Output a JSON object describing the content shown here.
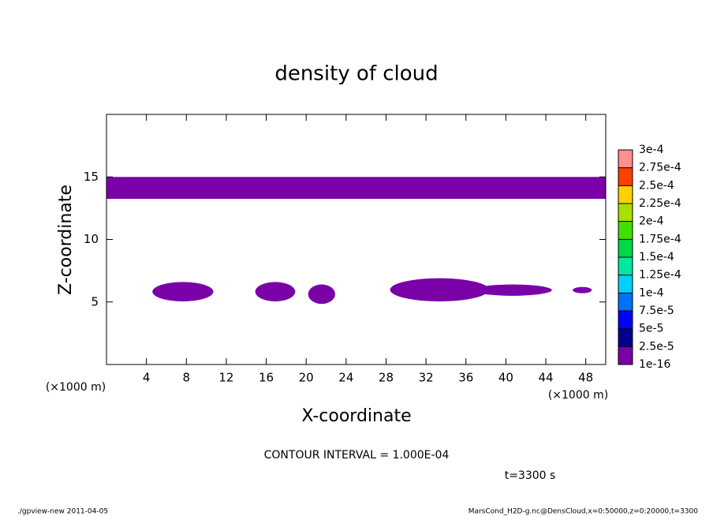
{
  "chart_data": {
    "type": "contour",
    "title": "density of cloud",
    "x_label": "X-coordinate",
    "y_label": "Z-coordinate",
    "x_unit_left": "(×1000 m)",
    "x_unit_right": "(×1000 m)",
    "contour_interval": "CONTOUR INTERVAL = 1.000E-04",
    "time_label": "t=3300 s",
    "footer_left": "./gpview-new  2011-04-05",
    "footer_right": "MarsCond_H2D-g.nc@DensCloud,x=0:50000,z=0:20000,t=3300",
    "xlim": [
      0,
      50
    ],
    "ylim": [
      0,
      20
    ],
    "xticks": [
      4,
      8,
      12,
      16,
      20,
      24,
      28,
      32,
      36,
      40,
      44,
      48
    ],
    "yticks": [
      5,
      10,
      15
    ],
    "regions": [
      {
        "shape": "rect",
        "x": [
          0,
          50
        ],
        "y": [
          13.25,
          15.0
        ],
        "color": "#7a00a8"
      },
      {
        "shape": "ellipse",
        "x": [
          4.6,
          10.7
        ],
        "y": [
          5.05,
          6.6
        ],
        "color": "#7a00a8"
      },
      {
        "shape": "ellipse",
        "x": [
          14.9,
          18.9
        ],
        "y": [
          5.05,
          6.6
        ],
        "color": "#7a00a8"
      },
      {
        "shape": "ellipse",
        "x": [
          20.2,
          22.9
        ],
        "y": [
          4.85,
          6.4
        ],
        "color": "#7a00a8"
      },
      {
        "shape": "ellipse",
        "x": [
          28.4,
          38.3
        ],
        "y": [
          5.05,
          6.9
        ],
        "color": "#7a00a8"
      },
      {
        "shape": "ellipse",
        "x": [
          36.7,
          44.6
        ],
        "y": [
          5.5,
          6.4
        ],
        "color": "#7a00a8"
      },
      {
        "shape": "ellipse",
        "x": [
          46.7,
          48.6
        ],
        "y": [
          5.7,
          6.2
        ],
        "color": "#7a00a8"
      }
    ],
    "colorbar": {
      "lim": [
        0,
        0.0003
      ],
      "levels": [
        {
          "value": 1e-16,
          "label": "1e-16"
        },
        {
          "value": 2.5e-05,
          "label": "2.5e-5"
        },
        {
          "value": 5e-05,
          "label": "5e-5"
        },
        {
          "value": 7.5e-05,
          "label": "7.5e-5"
        },
        {
          "value": 0.0001,
          "label": "1e-4"
        },
        {
          "value": 0.000125,
          "label": "1.25e-4"
        },
        {
          "value": 0.00015,
          "label": "1.5e-4"
        },
        {
          "value": 0.000175,
          "label": "1.75e-4"
        },
        {
          "value": 0.0002,
          "label": "2e-4"
        },
        {
          "value": 0.000225,
          "label": "2.25e-4"
        },
        {
          "value": 0.00025,
          "label": "2.5e-4"
        },
        {
          "value": 0.000275,
          "label": "2.75e-4"
        },
        {
          "value": 0.0003,
          "label": "3e-4"
        }
      ],
      "colors": [
        "#7a00a8",
        "#000090",
        "#0000ff",
        "#0070ff",
        "#00d0ff",
        "#00e8a0",
        "#00d848",
        "#40e000",
        "#a8e000",
        "#ffd000",
        "#ff4000",
        "#ff9090"
      ]
    }
  }
}
